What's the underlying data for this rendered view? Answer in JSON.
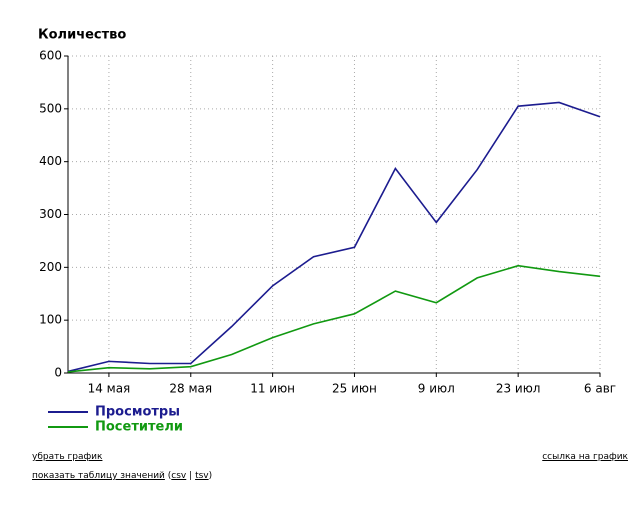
{
  "chart_data": {
    "type": "line",
    "title": "Количество",
    "categories": [
      null,
      "14 мая",
      null,
      "28 мая",
      null,
      "11 июн",
      null,
      "25 июн",
      null,
      "9 июл",
      null,
      "23 июл",
      null,
      "6 авг"
    ],
    "series": [
      {
        "name": "Просмотры",
        "color": "#1c1c8f",
        "values": [
          3,
          22,
          18,
          18,
          88,
          165,
          220,
          238,
          387,
          285,
          385,
          505,
          512,
          485
        ]
      },
      {
        "name": "Посетители",
        "color": "#119911",
        "values": [
          2,
          10,
          8,
          12,
          35,
          67,
          93,
          112,
          155,
          133,
          180,
          203,
          192,
          183
        ]
      }
    ],
    "ylim": [
      0,
      600
    ],
    "yticks": [
      0,
      100,
      200,
      300,
      400,
      500,
      600
    ],
    "grid": true
  },
  "links": {
    "hide": "убрать график",
    "chart_link": "ссылка на график",
    "table": "показать таблицу значений",
    "open": "(",
    "csv": "csv",
    "sep": "|",
    "tsv": "tsv",
    "close": ")"
  }
}
